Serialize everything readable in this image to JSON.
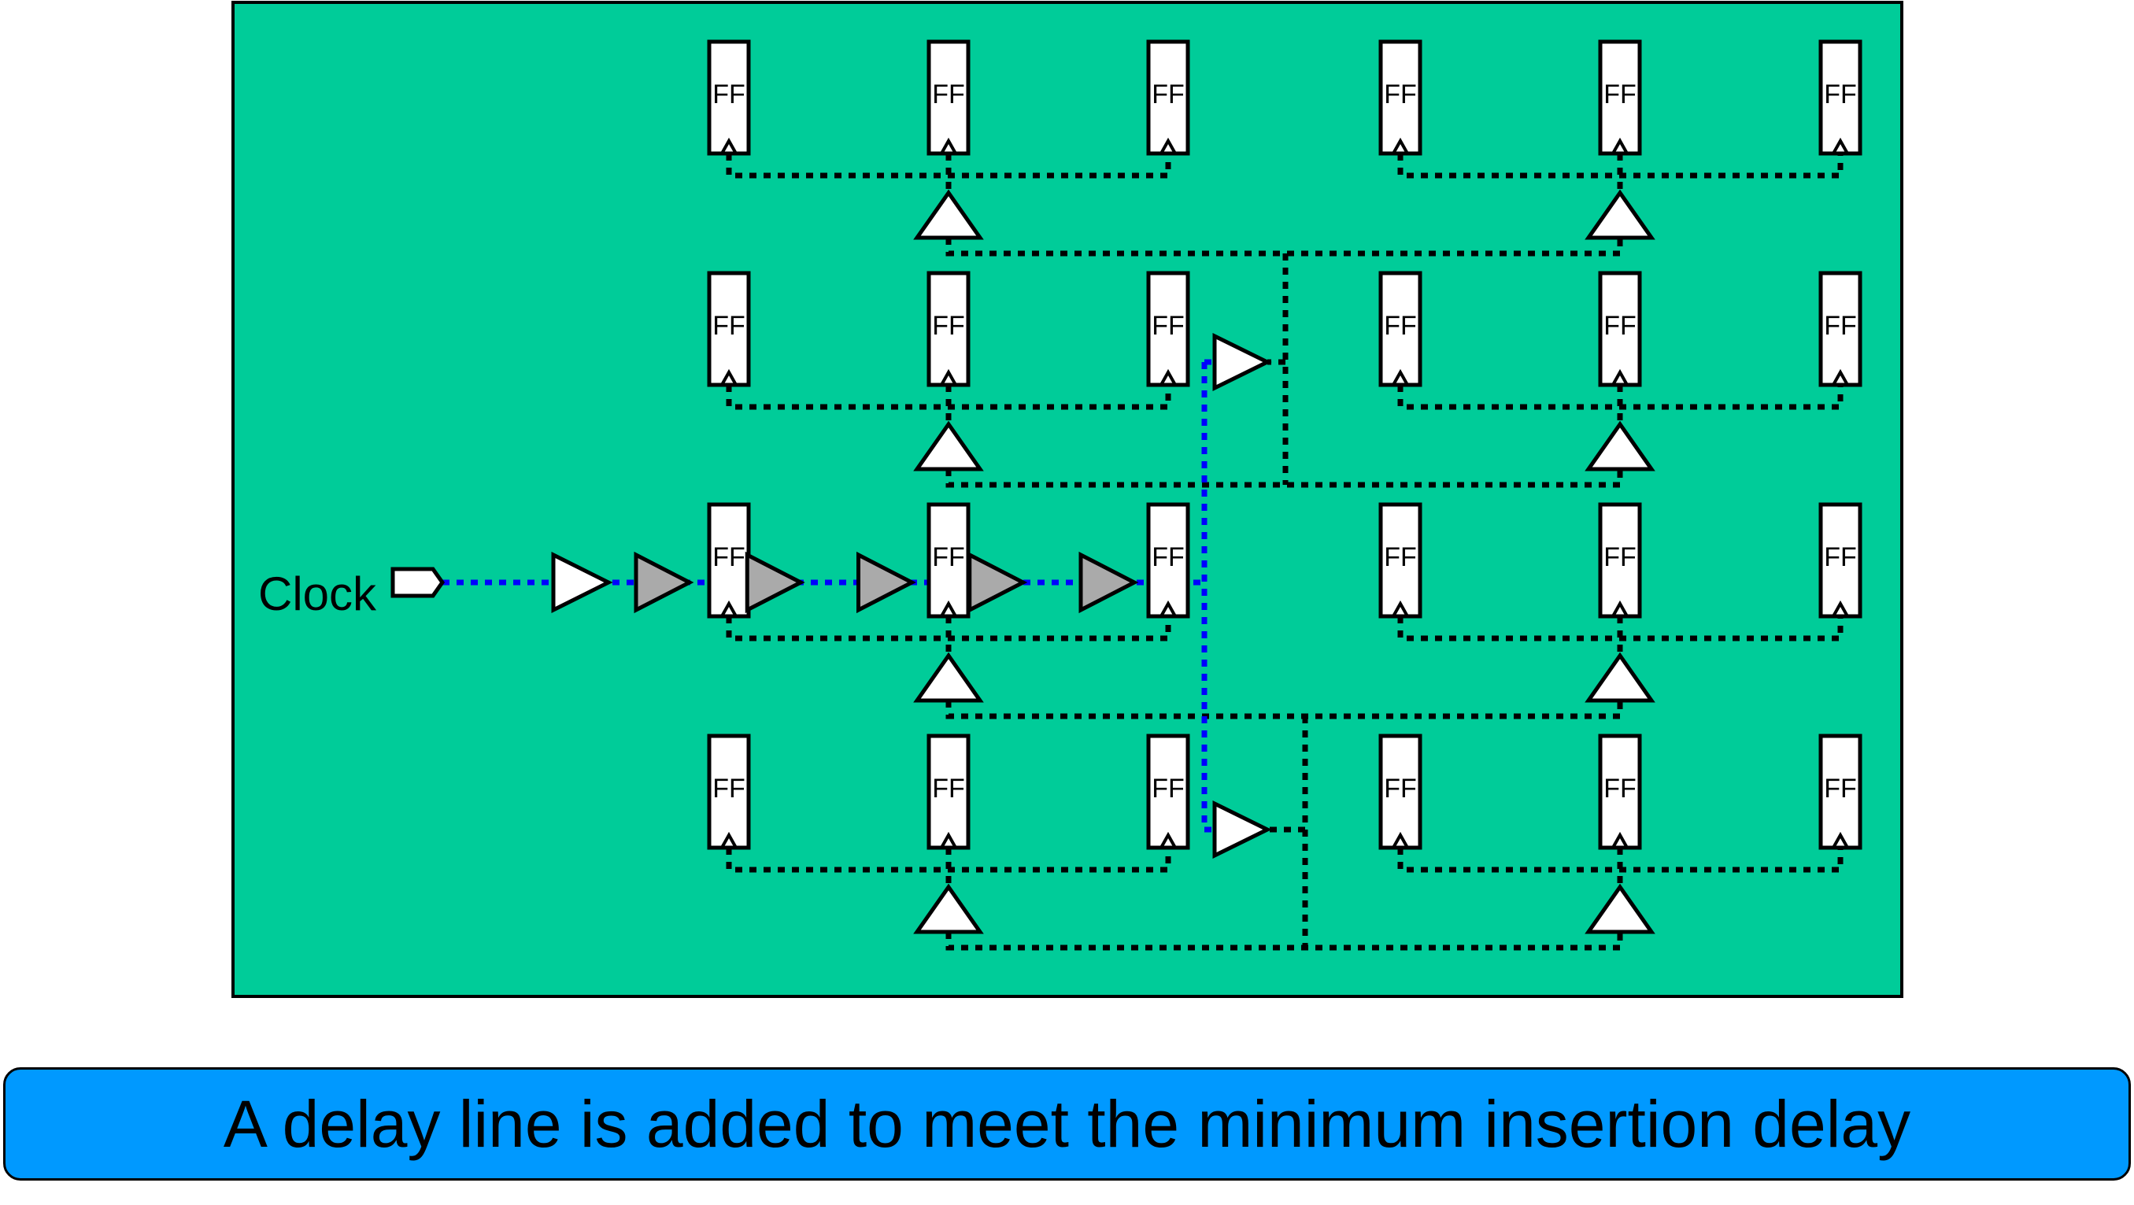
{
  "diagram": {
    "clock_label": "Clock",
    "flipflop_label": "FF",
    "colors": {
      "chip_fill": "#00cc99",
      "outline": "#000000",
      "clock_net": "#0000ff",
      "delay_buffer_fill": "#aaaaaa",
      "buffer_fill": "#ffffff"
    },
    "delay_line_buffer_count": 5
  },
  "caption": {
    "text": "A delay line is added to meet the minimum insertion delay",
    "color": "#0099ff"
  }
}
